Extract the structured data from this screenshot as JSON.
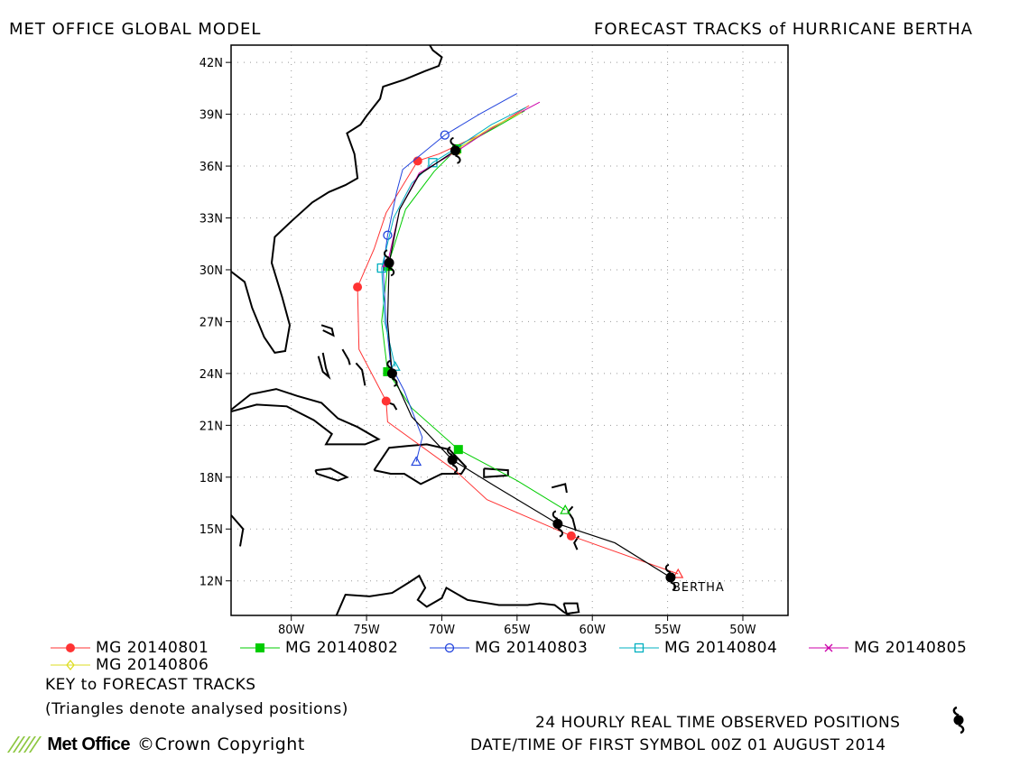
{
  "header": {
    "left_title": "MET OFFICE GLOBAL MODEL",
    "right_title": "FORECAST TRACKS of HURRICANE BERTHA"
  },
  "chart_data": {
    "type": "map-tracks",
    "lon_range": [
      -84,
      -47
    ],
    "lat_range": [
      10,
      43
    ],
    "x_ticks": [
      {
        "value": -80,
        "label": "80W"
      },
      {
        "value": -75,
        "label": "75W"
      },
      {
        "value": -70,
        "label": "70W"
      },
      {
        "value": -65,
        "label": "65W"
      },
      {
        "value": -60,
        "label": "60W"
      },
      {
        "value": -55,
        "label": "55W"
      },
      {
        "value": -50,
        "label": "50W"
      }
    ],
    "y_ticks": [
      {
        "value": 12,
        "label": "12N"
      },
      {
        "value": 15,
        "label": "15N"
      },
      {
        "value": 18,
        "label": "18N"
      },
      {
        "value": 21,
        "label": "21N"
      },
      {
        "value": 24,
        "label": "24N"
      },
      {
        "value": 27,
        "label": "27N"
      },
      {
        "value": 30,
        "label": "30N"
      },
      {
        "value": 33,
        "label": "33N"
      },
      {
        "value": 36,
        "label": "36N"
      },
      {
        "value": 39,
        "label": "39N"
      },
      {
        "value": 42,
        "label": "42N"
      }
    ],
    "grid": "dotted",
    "storm_label": "BERTHA",
    "observed_track": [
      [
        -54.8,
        12.2
      ],
      [
        -58.5,
        14.2
      ],
      [
        -62.3,
        15.3
      ],
      [
        -66.5,
        17.5
      ],
      [
        -69.3,
        19.0
      ],
      [
        -72.0,
        21.5
      ],
      [
        -73.3,
        24.0
      ],
      [
        -73.6,
        27.0
      ],
      [
        -73.5,
        30.4
      ],
      [
        -72.8,
        33.5
      ],
      [
        -71.5,
        35.5
      ],
      [
        -69.1,
        36.9
      ]
    ],
    "observed_positions": [
      [
        -54.8,
        12.2
      ],
      [
        -62.3,
        15.3
      ],
      [
        -69.3,
        19.0
      ],
      [
        -73.3,
        24.0
      ],
      [
        -73.5,
        30.4
      ],
      [
        -69.1,
        36.9
      ]
    ],
    "series": [
      {
        "name": "MG 20140801",
        "color": "#ff3333",
        "marker": "circle-filled",
        "points": [
          [
            -54.3,
            12.4
          ],
          [
            -61.4,
            14.6
          ],
          [
            -67.0,
            16.7
          ],
          [
            -69.0,
            18.3
          ],
          [
            -73.6,
            21.2
          ],
          [
            -73.7,
            22.4
          ],
          [
            -75.5,
            25.4
          ],
          [
            -75.6,
            29.0
          ],
          [
            -74.5,
            31.2
          ],
          [
            -73.7,
            33.3
          ],
          [
            -71.6,
            36.3
          ],
          [
            -70.2,
            36.7
          ],
          [
            -67.0,
            38.0
          ],
          [
            -64.2,
            39.5
          ]
        ],
        "marker_points": [
          [
            -61.4,
            14.6
          ],
          [
            -73.7,
            22.4
          ],
          [
            -75.6,
            29.0
          ],
          [
            -71.6,
            36.3
          ]
        ]
      },
      {
        "name": "MG 20140802",
        "color": "#00cc00",
        "marker": "square-filled",
        "points": [
          [
            -61.8,
            16.1
          ],
          [
            -65.0,
            17.8
          ],
          [
            -68.9,
            19.6
          ],
          [
            -72.0,
            22.0
          ],
          [
            -73.6,
            24.1
          ],
          [
            -74.0,
            27.0
          ],
          [
            -73.6,
            30.2
          ],
          [
            -72.4,
            33.5
          ],
          [
            -70.5,
            35.7
          ],
          [
            -69.0,
            37.0
          ],
          [
            -66.5,
            38.2
          ],
          [
            -64.5,
            39.2
          ]
        ],
        "marker_points": [
          [
            -68.9,
            19.6
          ],
          [
            -73.6,
            24.1
          ],
          [
            -73.6,
            30.2
          ],
          [
            -69.0,
            37.0
          ]
        ]
      },
      {
        "name": "MG 20140803",
        "color": "#2244dd",
        "marker": "circle-open",
        "points": [
          [
            -71.7,
            18.9
          ],
          [
            -71.3,
            20.3
          ],
          [
            -72.5,
            23.0
          ],
          [
            -73.4,
            24.5
          ],
          [
            -73.7,
            27.0
          ],
          [
            -73.9,
            30.1
          ],
          [
            -73.6,
            32.0
          ],
          [
            -73.0,
            34.5
          ],
          [
            -72.6,
            35.8
          ],
          [
            -69.8,
            37.8
          ],
          [
            -67.5,
            39.0
          ],
          [
            -65.0,
            40.2
          ]
        ],
        "marker_points": [
          [
            -73.6,
            32.0
          ],
          [
            -69.8,
            37.8
          ]
        ]
      },
      {
        "name": "MG 20140804",
        "color": "#00b0c0",
        "marker": "square-open",
        "points": [
          [
            -73.1,
            24.4
          ],
          [
            -73.8,
            27.0
          ],
          [
            -74.0,
            30.1
          ],
          [
            -73.2,
            33.0
          ],
          [
            -72.0,
            35.0
          ],
          [
            -70.6,
            36.2
          ],
          [
            -69.3,
            36.9
          ],
          [
            -66.7,
            38.4
          ],
          [
            -64.4,
            39.4
          ]
        ],
        "marker_points": [
          [
            -74.0,
            30.1
          ],
          [
            -70.6,
            36.2
          ]
        ]
      },
      {
        "name": "MG 20140805",
        "color": "#cc00aa",
        "marker": "cross",
        "points": [
          [
            -73.6,
            30.4
          ],
          [
            -72.8,
            33.5
          ],
          [
            -71.5,
            35.6
          ],
          [
            -69.1,
            36.8
          ],
          [
            -66.5,
            38.3
          ],
          [
            -63.5,
            39.7
          ]
        ],
        "marker_points": []
      },
      {
        "name": "MG 20140806",
        "color": "#dddd22",
        "marker": "diamond-open",
        "points": [
          [
            -69.1,
            36.9
          ],
          [
            -66.8,
            38.2
          ],
          [
            -64.7,
            39.1
          ]
        ],
        "marker_points": []
      }
    ],
    "analysed_triangles": [
      {
        "series": 0,
        "pos": [
          -54.3,
          12.4
        ]
      },
      {
        "series": 1,
        "pos": [
          -61.8,
          16.1
        ]
      },
      {
        "series": 2,
        "pos": [
          -71.7,
          18.9
        ]
      },
      {
        "series": 3,
        "pos": [
          -73.1,
          24.4
        ]
      },
      {
        "series": 4,
        "pos": [
          -73.6,
          30.4
        ]
      },
      {
        "series": 5,
        "pos": [
          -69.1,
          36.9
        ]
      }
    ]
  },
  "notes": {
    "key_title": "KEY to FORECAST TRACKS",
    "triangles": "(Triangles denote analysed positions)",
    "observed": "24 HOURLY REAL TIME OBSERVED POSITIONS",
    "datetime": "DATE/TIME OF FIRST SYMBOL 00Z 01 AUGUST 2014"
  },
  "footer": {
    "brand": "Met Office",
    "copyright": "©Crown Copyright"
  },
  "colors": {
    "brand_green": "#8cc63f"
  }
}
